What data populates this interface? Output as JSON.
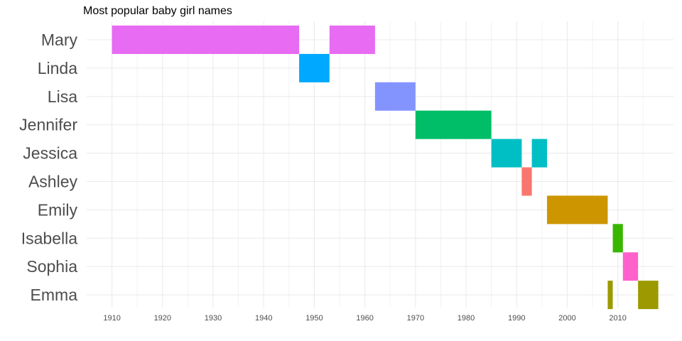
{
  "chart_data": {
    "type": "bar",
    "subtype": "timeline",
    "title": "Most popular baby girl names",
    "xlabel": "",
    "ylabel": "",
    "xlim": [
      1905,
      2021
    ],
    "x_ticks": [
      1910,
      1920,
      1930,
      1940,
      1950,
      1960,
      1970,
      1980,
      1990,
      2000,
      2010
    ],
    "grid": true,
    "legend": "none",
    "categories": [
      "Mary",
      "Linda",
      "Lisa",
      "Jennifer",
      "Jessica",
      "Ashley",
      "Emily",
      "Isabella",
      "Sophia",
      "Emma"
    ],
    "colors": {
      "Mary": "#E76BF3",
      "Linda": "#00A9FF",
      "Lisa": "#8494FF",
      "Jennifer": "#00BE67",
      "Jessica": "#00BFC4",
      "Ashley": "#F8766D",
      "Emily": "#CD9600",
      "Isabella": "#39B600",
      "Sophia": "#FF61CC",
      "Emma": "#9C9A00"
    },
    "segments": [
      {
        "name": "Mary",
        "start": 1910,
        "end": 1947
      },
      {
        "name": "Mary",
        "start": 1953,
        "end": 1962
      },
      {
        "name": "Linda",
        "start": 1947,
        "end": 1953
      },
      {
        "name": "Lisa",
        "start": 1962,
        "end": 1970
      },
      {
        "name": "Jennifer",
        "start": 1970,
        "end": 1985
      },
      {
        "name": "Jessica",
        "start": 1985,
        "end": 1991
      },
      {
        "name": "Jessica",
        "start": 1993,
        "end": 1996
      },
      {
        "name": "Ashley",
        "start": 1991,
        "end": 1993
      },
      {
        "name": "Emily",
        "start": 1996,
        "end": 2008
      },
      {
        "name": "Isabella",
        "start": 2009,
        "end": 2011
      },
      {
        "name": "Sophia",
        "start": 2011,
        "end": 2014
      },
      {
        "name": "Emma",
        "start": 2008,
        "end": 2009
      },
      {
        "name": "Emma",
        "start": 2014,
        "end": 2018
      }
    ]
  }
}
